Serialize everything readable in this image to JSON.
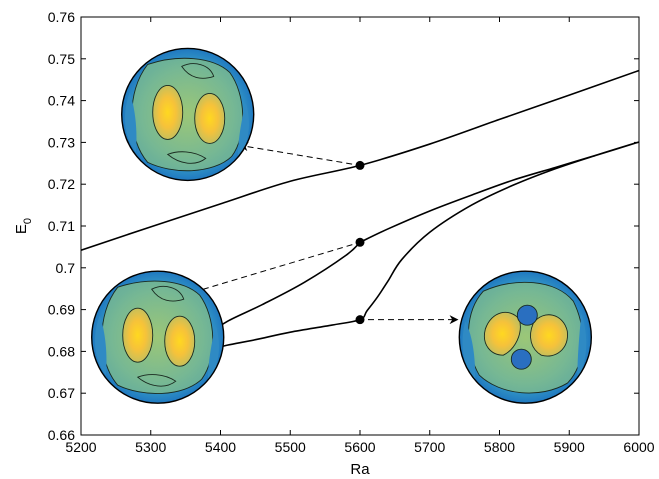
{
  "chart_data": {
    "type": "line",
    "title": "",
    "xlabel": "Ra",
    "ylabel_main": "E",
    "ylabel_sub": "0",
    "xlim": [
      5200,
      6000
    ],
    "ylim": [
      0.66,
      0.76
    ],
    "xticks": [
      5200,
      5300,
      5400,
      5500,
      5600,
      5700,
      5800,
      5900,
      6000
    ],
    "yticks": [
      0.66,
      0.67,
      0.68,
      0.69,
      0.7,
      0.71,
      0.72,
      0.73,
      0.74,
      0.75,
      0.76
    ],
    "xtick_labels": [
      "5200",
      "5300",
      "5400",
      "5500",
      "5600",
      "5700",
      "5800",
      "5900",
      "6000"
    ],
    "ytick_labels": [
      "0.66",
      "0.67",
      "0.68",
      "0.69",
      "0.7",
      "0.71",
      "0.72",
      "0.73",
      "0.74",
      "0.75",
      "0.76"
    ],
    "grid": false,
    "legend": "none",
    "series": [
      {
        "x": [
          5200,
          5300,
          5400,
          5500,
          5600,
          5700,
          5800,
          5900,
          6000
        ],
        "y": [
          0.7042,
          0.7098,
          0.7153,
          0.7207,
          0.7245,
          0.7296,
          0.7355,
          0.7413,
          0.7472
        ]
      },
      {
        "x": [
          5600,
          5640,
          5700,
          5760,
          5820,
          5880,
          5940,
          6000,
          5940,
          5880,
          5820,
          5760,
          5700,
          5660,
          5640,
          5625,
          5610,
          5600,
          5560,
          5500,
          5450,
          5410,
          5385,
          5375,
          5383,
          5410,
          5460,
          5520,
          5580,
          5600
        ],
        "y": [
          0.7061,
          0.7093,
          0.7136,
          0.7174,
          0.721,
          0.724,
          0.727,
          0.7301,
          0.727,
          0.7237,
          0.7198,
          0.715,
          0.7085,
          0.702,
          0.6968,
          0.693,
          0.6897,
          0.6876,
          0.6863,
          0.6846,
          0.6828,
          0.6815,
          0.6805,
          0.6818,
          0.684,
          0.6872,
          0.6912,
          0.6965,
          0.703,
          0.7061
        ]
      }
    ],
    "markers": [
      {
        "x": 5600,
        "y": 0.7245
      },
      {
        "x": 5600,
        "y": 0.7061
      },
      {
        "x": 5600,
        "y": 0.6876
      }
    ],
    "annotations": [
      {
        "type": "arrow",
        "from": [
          5600,
          0.7245
        ],
        "to": [
          5428,
          0.7293
        ],
        "target": "inset-top"
      },
      {
        "type": "arrow",
        "from": [
          5600,
          0.7061
        ],
        "to": [
          5350,
          0.6936
        ],
        "target": "inset-left"
      },
      {
        "type": "arrow",
        "from": [
          5600,
          0.6876
        ],
        "to": [
          5740,
          0.6876
        ],
        "target": "inset-right"
      }
    ],
    "insets": [
      {
        "name": "inset-top",
        "x": 5353,
        "y": 0.7367,
        "pattern": "two-lobe"
      },
      {
        "name": "inset-left",
        "x": 5310,
        "y": 0.6834,
        "pattern": "two-lobe"
      },
      {
        "name": "inset-right",
        "x": 5837,
        "y": 0.6834,
        "pattern": "four-lobe"
      }
    ]
  }
}
